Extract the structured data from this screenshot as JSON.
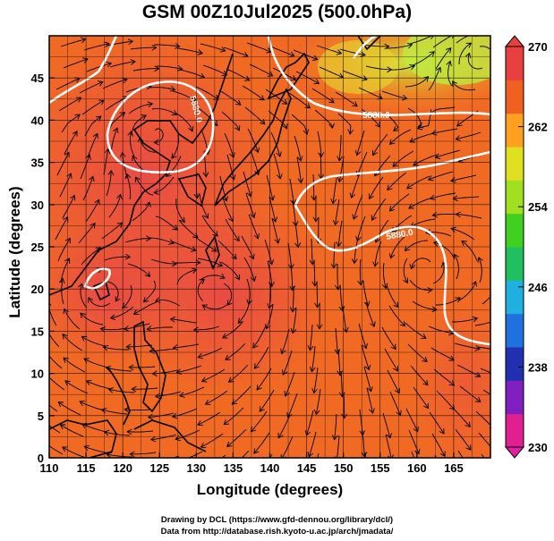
{
  "title": "GSM 00Z10Jul2025 (500.0hPa)",
  "chart_data": {
    "type": "heatmap",
    "variable_level": "500.0hPa",
    "xlabel": "Longitude (degrees)",
    "ylabel": "Latitude  (degrees)",
    "xlim": [
      110,
      170
    ],
    "ylim": [
      0,
      50
    ],
    "x_ticks": [
      "110",
      "115",
      "120",
      "125",
      "130",
      "135",
      "140",
      "145",
      "150",
      "155",
      "160",
      "165"
    ],
    "y_ticks": [
      "0",
      "5",
      "10",
      "15",
      "20",
      "25",
      "30",
      "35",
      "40",
      "45"
    ],
    "colorbar": {
      "ticks": [
        "230",
        "238",
        "246",
        "254",
        "262",
        "270"
      ],
      "range": [
        230,
        270
      ],
      "colors": [
        "#e02090",
        "#8020c0",
        "#2030b0",
        "#2070e0",
        "#20b0e0",
        "#20c060",
        "#40d020",
        "#a0e020",
        "#e0e020",
        "#ffa020",
        "#f06020",
        "#e84040"
      ]
    },
    "contours": [
      {
        "label": "5880.0",
        "description": "closed high near 124E 42N"
      },
      {
        "label": "5880.0",
        "description": "small high near 116E 25N"
      },
      {
        "label": "5880.0",
        "description": "subtropical high boundary west Pacific"
      },
      {
        "label": "5880.0",
        "description": "northern boundary near 40-45N"
      }
    ],
    "field": "temperature (K) shaded, streamlines, geopotential contours"
  },
  "credits": {
    "line1": "Drawing by DCL (https://www.gfd-dennou.org/library/dcl/)",
    "line2": "Data from http://database.rish.kyoto-u.ac.jp/arch/jmadata/"
  }
}
